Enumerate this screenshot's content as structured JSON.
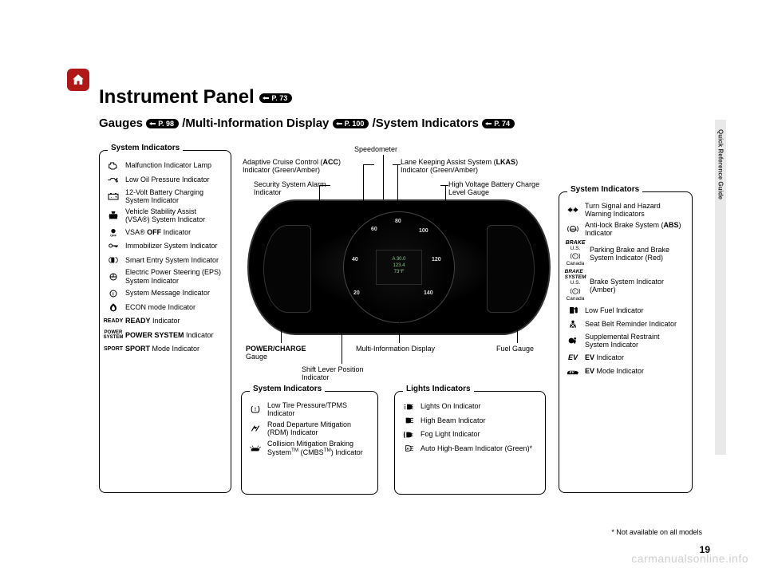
{
  "sideTab": "Quick Reference Guide",
  "title": "Instrument Panel",
  "titlePill": "P. 73",
  "subtitleParts": {
    "gauges": "Gauges",
    "gaugesPill": "P. 98",
    "mid": "/Multi-Information Display",
    "midPill": "P. 100",
    "sys": "/System Indicators",
    "sysPill": "P. 74"
  },
  "leftPanel": {
    "title": "System Indicators",
    "items": [
      {
        "icon": "engine",
        "label": "Malfunction Indicator Lamp"
      },
      {
        "icon": "oil",
        "label": "Low Oil Pressure Indicator"
      },
      {
        "icon": "battery",
        "label": "12-Volt Battery Charging System Indicator"
      },
      {
        "icon": "vsa",
        "label": "Vehicle Stability Assist (VSA®) System Indicator"
      },
      {
        "icon": "vsaoff",
        "label": "VSA® <b>OFF</b> Indicator"
      },
      {
        "icon": "key",
        "label": "Immobilizer System Indicator"
      },
      {
        "icon": "smartentry",
        "label": "Smart Entry System Indicator"
      },
      {
        "icon": "eps",
        "label": "Electric Power Steering (EPS) System Indicator"
      },
      {
        "icon": "info",
        "label": "System Message Indicator"
      },
      {
        "icon": "econ",
        "label": "ECON mode Indicator"
      },
      {
        "icon": "text",
        "iconText": "READY",
        "label": "<b>READY</b> Indicator"
      },
      {
        "icon": "text2",
        "iconText": "POWER SYSTEM",
        "label": "<b>POWER SYSTEM</b> Indicator"
      },
      {
        "icon": "text",
        "iconText": "SPORT",
        "label": "<b>SPORT</b> Mode Indicator"
      }
    ]
  },
  "rightPanel": {
    "title": "System Indicators",
    "items": [
      {
        "icon": "turn",
        "label": "Turn Signal and Hazard Warning Indicators"
      },
      {
        "icon": "abs",
        "label": "Anti-lock Brake System (<b>ABS</b>) Indicator"
      },
      {
        "icon": "brake-stack",
        "label": "Parking Brake and Brake System Indicator (Red)"
      },
      {
        "icon": "brakesys-stack",
        "label": "Brake System Indicator (Amber)"
      },
      {
        "icon": "fuel",
        "label": "Low Fuel Indicator"
      },
      {
        "icon": "seatbelt",
        "label": "Seat Belt Reminder Indicator"
      },
      {
        "icon": "airbag",
        "label": "Supplemental Restraint System Indicator"
      },
      {
        "icon": "ev",
        "label": "<b>EV</b> Indicator"
      },
      {
        "icon": "evmode",
        "label": "<b>EV</b> Mode Indicator"
      }
    ]
  },
  "bottom1": {
    "title": "System Indicators",
    "items": [
      {
        "icon": "tpms",
        "label": "Low Tire Pressure/TPMS Indicator"
      },
      {
        "icon": "rdm",
        "label": "Road Departure Mitigation (RDM) Indicator"
      },
      {
        "icon": "cmbs",
        "label": "Collision Mitigation Braking System<sup>TM</sup> (CMBS<sup>TM</sup>) Indicator"
      }
    ]
  },
  "bottom2": {
    "title": "Lights Indicators",
    "items": [
      {
        "icon": "lightson",
        "label": "Lights On Indicator"
      },
      {
        "icon": "highbeam",
        "label": "High Beam Indicator"
      },
      {
        "icon": "fog",
        "label": "Fog Light Indicator"
      },
      {
        "icon": "autohb",
        "label": "Auto High-Beam Indicator (Green)*"
      }
    ]
  },
  "callouts": {
    "speedo": "Speedometer",
    "acc": "Adaptive Cruise Control (<b>ACC</b>) Indicator (Green/Amber)",
    "security": "Security System Alarm Indicator",
    "lkas": "Lane Keeping Assist System (<b>LKAS</b>) Indicator (Green/Amber)",
    "hv": "High Voltage Battery Charge Level Gauge",
    "pcg": "<b>POWER/CHARGE</b> Gauge",
    "mid": "Multi-Information Display",
    "fuel": "Fuel Gauge",
    "shift": "Shift Lever Position Indicator"
  },
  "speedoTicks": [
    "20",
    "40",
    "60",
    "80",
    "100",
    "120",
    "140"
  ],
  "midDisp": {
    "l1": "A  30.0",
    "l2": "123.4",
    "l3": "73°F"
  },
  "footnote": "* Not available on all models",
  "pageNum": "19",
  "watermark": "carmanualsonline.info"
}
